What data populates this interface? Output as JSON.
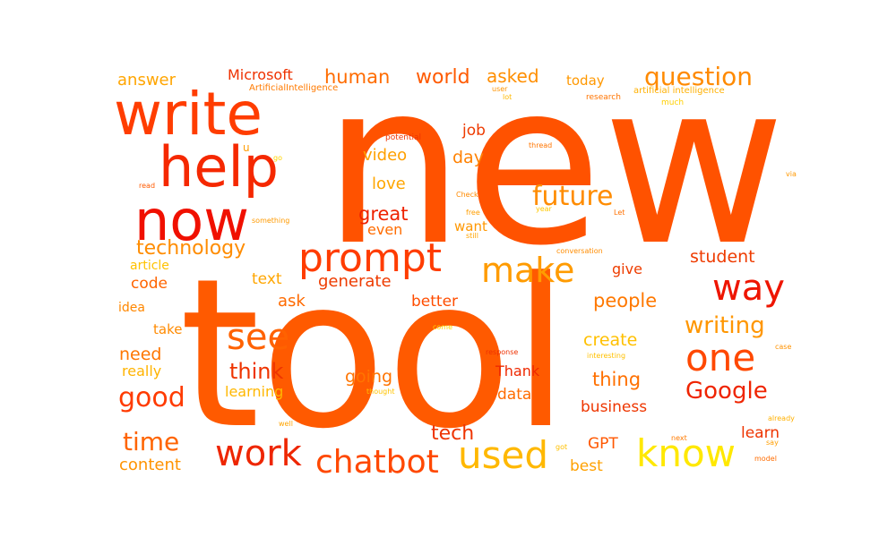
{
  "words": [
    {
      "text": "new",
      "color": "#ff5200"
    },
    {
      "text": "tool",
      "color": "#ff5a00"
    },
    {
      "text": "write",
      "color": "#ff3d00"
    },
    {
      "text": "help",
      "color": "#f52800"
    },
    {
      "text": "now",
      "color": "#f01000"
    },
    {
      "text": "prompt",
      "color": "#ff3c00"
    },
    {
      "text": "make",
      "color": "#ff9b00"
    },
    {
      "text": "way",
      "color": "#ee1500"
    },
    {
      "text": "one",
      "color": "#ff4800"
    },
    {
      "text": "see",
      "color": "#ff6200"
    },
    {
      "text": "work",
      "color": "#ee2600"
    },
    {
      "text": "chatbot",
      "color": "#ff4800"
    },
    {
      "text": "used",
      "color": "#ffb800"
    },
    {
      "text": "know",
      "color": "#ffe800"
    },
    {
      "text": "future",
      "color": "#ff8c00"
    },
    {
      "text": "Google",
      "color": "#ef2400"
    },
    {
      "text": "writing",
      "color": "#ff9600"
    },
    {
      "text": "question",
      "color": "#ff8a00"
    },
    {
      "text": "good",
      "color": "#ff3b00"
    },
    {
      "text": "time",
      "color": "#ff6400"
    },
    {
      "text": "think",
      "color": "#ee3400"
    },
    {
      "text": "technology",
      "color": "#ff8c00"
    },
    {
      "text": "world",
      "color": "#ff5a00"
    },
    {
      "text": "human",
      "color": "#ff6c00"
    },
    {
      "text": "Microsoft",
      "color": "#ee3100"
    },
    {
      "text": "asked",
      "color": "#ff8e00"
    },
    {
      "text": "answer",
      "color": "#ffa500"
    },
    {
      "text": "today",
      "color": "#ff9800"
    },
    {
      "text": "great",
      "color": "#ee2200"
    },
    {
      "text": "even",
      "color": "#ff6c00"
    },
    {
      "text": "love",
      "color": "#ffa600"
    },
    {
      "text": "video",
      "color": "#ffa000"
    },
    {
      "text": "day",
      "color": "#ff8100"
    },
    {
      "text": "job",
      "color": "#ee3b00"
    },
    {
      "text": "want",
      "color": "#ff9700"
    },
    {
      "text": "student",
      "color": "#ee3b00"
    },
    {
      "text": "people",
      "color": "#ff7800"
    },
    {
      "text": "create",
      "color": "#ffc000"
    },
    {
      "text": "thing",
      "color": "#ff7000"
    },
    {
      "text": "business",
      "color": "#ee3600"
    },
    {
      "text": "data",
      "color": "#ff6c00"
    },
    {
      "text": "Thank",
      "color": "#ee2800"
    },
    {
      "text": "going",
      "color": "#ff7400"
    },
    {
      "text": "tech",
      "color": "#ee3400"
    },
    {
      "text": "GPT",
      "color": "#ff5700"
    },
    {
      "text": "best",
      "color": "#ffa100"
    },
    {
      "text": "learn",
      "color": "#ee3400"
    },
    {
      "text": "give",
      "color": "#ee3d00"
    },
    {
      "text": "generate",
      "color": "#ee3b00"
    },
    {
      "text": "text",
      "color": "#ffa600"
    },
    {
      "text": "ask",
      "color": "#ff6a00"
    },
    {
      "text": "better",
      "color": "#ff4d00"
    },
    {
      "text": "code",
      "color": "#ff6400"
    },
    {
      "text": "idea",
      "color": "#ff8700"
    },
    {
      "text": "take",
      "color": "#ff8a00"
    },
    {
      "text": "need",
      "color": "#ff7600"
    },
    {
      "text": "really",
      "color": "#ffb300"
    },
    {
      "text": "learning",
      "color": "#ffb700"
    },
    {
      "text": "content",
      "color": "#ff9300"
    },
    {
      "text": "article",
      "color": "#ffc200"
    },
    {
      "text": "ArtificialIntelligence",
      "color": "#ff7a00"
    },
    {
      "text": "artificial intelligence",
      "color": "#ffb000"
    },
    {
      "text": "user",
      "color": "#ff9400"
    },
    {
      "text": "lot",
      "color": "#ffb800"
    },
    {
      "text": "research",
      "color": "#ff7400"
    },
    {
      "text": "much",
      "color": "#ffcf00"
    },
    {
      "text": "potential",
      "color": "#ee3300"
    },
    {
      "text": "thread",
      "color": "#ff7500"
    },
    {
      "text": "u",
      "color": "#ff9c00"
    },
    {
      "text": "go",
      "color": "#ffd400"
    },
    {
      "text": "read",
      "color": "#ff5a00"
    },
    {
      "text": "Check",
      "color": "#ff8a00"
    },
    {
      "text": "free",
      "color": "#ff9e00"
    },
    {
      "text": "year",
      "color": "#ffc800"
    },
    {
      "text": "still",
      "color": "#ffa400"
    },
    {
      "text": "Let",
      "color": "#ff7000"
    },
    {
      "text": "via",
      "color": "#ff9800"
    },
    {
      "text": "something",
      "color": "#ff9a00"
    },
    {
      "text": "conversation",
      "color": "#ff8c00"
    },
    {
      "text": "come",
      "color": "#ffd800"
    },
    {
      "text": "response",
      "color": "#ee3000"
    },
    {
      "text": "interesting",
      "color": "#ffc000"
    },
    {
      "text": "case",
      "color": "#ff9200"
    },
    {
      "text": "thought",
      "color": "#ffc300"
    },
    {
      "text": "already",
      "color": "#ffb000"
    },
    {
      "text": "well",
      "color": "#ffa400"
    },
    {
      "text": "next",
      "color": "#ff7a00"
    },
    {
      "text": "say",
      "color": "#ff9e00"
    },
    {
      "text": "got",
      "color": "#ffc000"
    },
    {
      "text": "model",
      "color": "#ff6c00"
    }
  ]
}
